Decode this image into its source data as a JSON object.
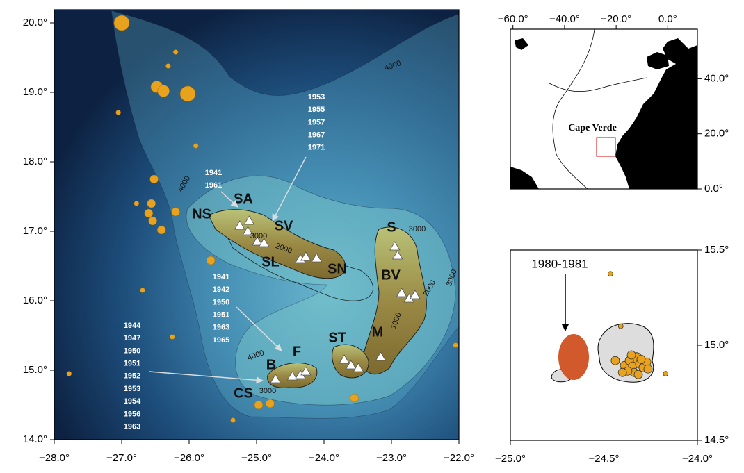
{
  "main_map": {
    "xlim": [
      -28,
      -22
    ],
    "ylim": [
      14,
      20.19
    ],
    "xticks": [
      {
        "value": -28,
        "label": "−28.0°"
      },
      {
        "value": -27,
        "label": "−27.0°"
      },
      {
        "value": -26,
        "label": "−26.0°"
      },
      {
        "value": -25,
        "label": "−25.0°"
      },
      {
        "value": -24,
        "label": "−24.0°"
      },
      {
        "value": -23,
        "label": "−23.0°"
      },
      {
        "value": -22,
        "label": "−22.0°"
      }
    ],
    "yticks": [
      {
        "value": 14,
        "label": "14.0°"
      },
      {
        "value": 15,
        "label": "15.0°"
      },
      {
        "value": 16,
        "label": "16.0°"
      },
      {
        "value": 17,
        "label": "17.0°"
      },
      {
        "value": 18,
        "label": "18.0°"
      },
      {
        "value": 19,
        "label": "19.0°"
      },
      {
        "value": 20,
        "label": "20.0°"
      }
    ],
    "islands": [
      "NS",
      "SA",
      "SV",
      "SL",
      "SN",
      "S",
      "BV",
      "M",
      "ST",
      "F",
      "B",
      "CS"
    ],
    "year_notes": [
      [
        "1953",
        "1955",
        "1957",
        "1967",
        "1971"
      ],
      [
        "1941",
        "1961"
      ],
      [
        "1941",
        "1942",
        "1950",
        "1951",
        "1963",
        "1965"
      ],
      [
        "1944",
        "1947",
        "1950",
        "1951",
        "1952",
        "1953",
        "1954",
        "1956",
        "1963"
      ]
    ],
    "contour_labels": [
      "4000",
      "4000",
      "3000",
      "2000",
      "3000",
      "2000",
      "1000",
      "3000",
      "4000",
      "3000"
    ],
    "earthquakes": {
      "lon": [
        -27.0,
        -26.2,
        -26.31,
        -26.48,
        -26.38,
        -26.02,
        -27.05,
        -25.9,
        -26.52,
        -26.78,
        -26.56,
        -26.2,
        -26.6,
        -26.54,
        -26.41,
        -25.68,
        -26.69,
        -26.25,
        -27.78,
        -24.97,
        -24.8,
        -23.55,
        -25.35,
        -22.05
      ],
      "lat": [
        20.0,
        19.58,
        19.38,
        19.08,
        19.02,
        18.98,
        18.71,
        18.23,
        17.75,
        17.4,
        17.4,
        17.28,
        17.26,
        17.15,
        17.02,
        16.58,
        16.15,
        15.48,
        14.95,
        14.5,
        14.52,
        14.6,
        14.28,
        15.36
      ],
      "size": [
        4,
        1,
        1,
        3,
        3,
        4,
        1,
        1,
        2,
        1,
        2,
        2,
        2,
        2,
        2,
        2,
        1,
        1,
        1,
        2,
        2,
        2,
        1,
        1
      ]
    },
    "volcanoes": {
      "lon": [
        -25.25,
        -25.11,
        -25.13,
        -24.99,
        -24.89,
        -24.35,
        -24.27,
        -24.11,
        -22.95,
        -22.91,
        -22.85,
        -22.74,
        -22.65,
        -23.16,
        -23.7,
        -23.6,
        -23.49,
        -24.47,
        -24.35,
        -24.27,
        -24.72
      ],
      "lat": [
        17.08,
        17.15,
        17.0,
        16.85,
        16.83,
        16.6,
        16.63,
        16.61,
        16.78,
        16.65,
        16.11,
        16.03,
        16.08,
        15.19,
        15.15,
        15.07,
        15.03,
        14.91,
        14.93,
        14.98,
        14.87
      ]
    }
  },
  "location_map": {
    "xlim": [
      -61,
      11.5
    ],
    "ylim": [
      0,
      58
    ],
    "xticks": [
      {
        "value": -60,
        "label": "−60.0°"
      },
      {
        "value": -40,
        "label": "−40.0°"
      },
      {
        "value": -20,
        "label": "−20.0°"
      },
      {
        "value": 0,
        "label": "0.0°"
      }
    ],
    "yticks": [
      {
        "value": 0,
        "label": "0.0°"
      },
      {
        "value": 20,
        "label": "20.0°"
      },
      {
        "value": 40,
        "label": "40.0°"
      }
    ],
    "label": "Cape Verde"
  },
  "detail_map": {
    "xlim": [
      -25,
      -24
    ],
    "ylim": [
      14.5,
      15.5
    ],
    "xticks": [
      {
        "value": -25,
        "label": "−25.0°"
      },
      {
        "value": -24.5,
        "label": "−24.5°"
      },
      {
        "value": -24,
        "label": "−24.0°"
      }
    ],
    "yticks": [
      {
        "value": 14.5,
        "label": "14.5°"
      },
      {
        "value": 15,
        "label": "15.0°"
      },
      {
        "value": 15.5,
        "label": "15.5°"
      }
    ],
    "label": "1980-1981",
    "earthquakes": {
      "lon": [
        -24.465,
        -24.41,
        -24.17,
        -24.439,
        -24.39,
        -24.327,
        -24.364,
        -24.346,
        -24.309,
        -24.29,
        -24.271,
        -24.338,
        -24.372,
        -24.316,
        -24.401,
        -24.353,
        -24.301,
        -24.264
      ],
      "lat": [
        15.375,
        15.1,
        14.85,
        14.919,
        14.893,
        14.93,
        14.919,
        14.89,
        14.901,
        14.882,
        14.912,
        14.857,
        14.864,
        14.846,
        14.857,
        14.949,
        14.926,
        14.875
      ],
      "size": [
        1,
        1,
        1,
        2,
        2,
        3,
        2,
        2,
        2,
        2,
        2,
        2,
        2,
        2,
        2,
        2,
        2,
        2
      ]
    }
  }
}
